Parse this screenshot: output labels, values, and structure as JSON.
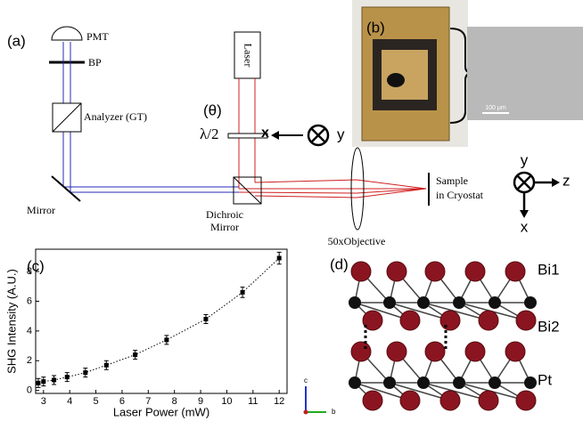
{
  "panel_a": {
    "label": "(a)",
    "pmt": "PMT",
    "bp": "BP",
    "analyzer": "Analyzer (GT)",
    "mirror": "Mirror",
    "laser": "Laser",
    "theta": "(θ)",
    "waveplate": "λ/2",
    "beam_axes": [
      "x",
      "y"
    ],
    "dichroic": [
      "Dichroic",
      "Mirror"
    ],
    "sample": [
      "Sample",
      "in Cryostat"
    ],
    "objective": "50xObjective",
    "lab_axes": [
      "y",
      "z",
      "x"
    ]
  },
  "panel_b": {
    "label": "(b)",
    "scale_bar": "100 μm"
  },
  "panel_d": {
    "label": "(d)",
    "layers": [
      "Bi1",
      "Bi2",
      "Pt"
    ],
    "axes": [
      "c",
      "b"
    ]
  },
  "chart_data": {
    "type": "scatter",
    "label": "(c)",
    "x_label": "Laser Power (mW)",
    "y_label": "SHG Intensity (A.U.)",
    "x": [
      2.8,
      3.0,
      3.4,
      3.9,
      4.6,
      5.4,
      6.5,
      7.7,
      9.2,
      10.6,
      12.0
    ],
    "values": [
      0.5,
      0.6,
      0.7,
      0.9,
      1.2,
      1.7,
      2.4,
      3.4,
      4.8,
      6.6,
      8.9
    ],
    "errors": [
      0.3,
      0.3,
      0.3,
      0.3,
      0.3,
      0.3,
      0.3,
      0.3,
      0.3,
      0.35,
      0.4
    ],
    "color": "#000000",
    "fit_line": "dotted",
    "xlim": [
      2.7,
      12.3
    ],
    "xticks": [
      3,
      4,
      5,
      6,
      7,
      8,
      9,
      10,
      11,
      12
    ],
    "ylim": [
      -0.2,
      9.5
    ],
    "yticks": [
      0,
      2,
      4,
      6,
      8
    ]
  }
}
